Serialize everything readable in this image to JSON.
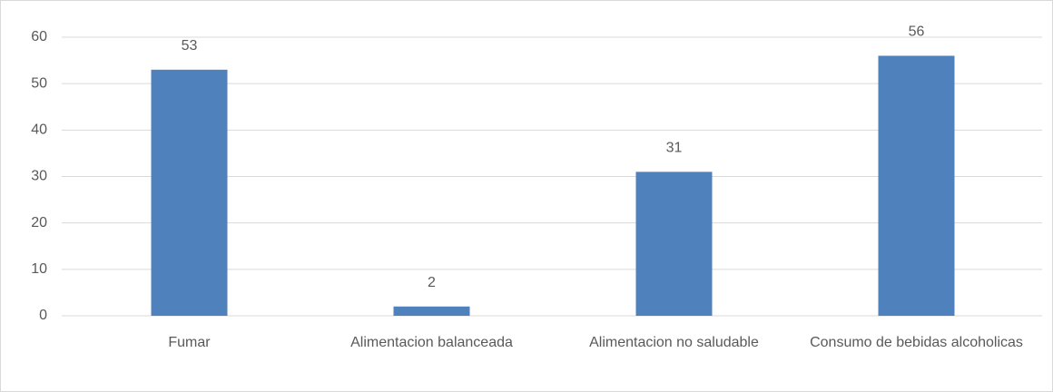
{
  "chart_data": {
    "type": "bar",
    "categories": [
      "Fumar",
      "Alimentacion balanceada",
      "Alimentacion no saludable",
      "Consumo de bebidas alcoholicas"
    ],
    "values": [
      53,
      2,
      31,
      56
    ],
    "color": "#4f81bd",
    "ylim": [
      0,
      60
    ],
    "yticks": [
      0,
      10,
      20,
      30,
      40,
      50,
      60
    ],
    "grid": true
  }
}
